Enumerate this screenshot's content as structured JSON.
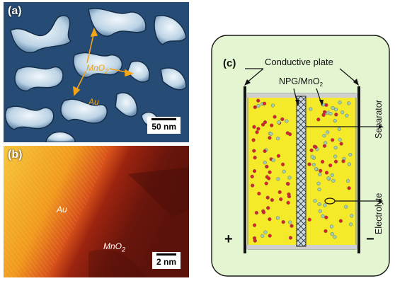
{
  "panel_a": {
    "label": "(a)",
    "mno2_label": "MnO",
    "mno2_sub": "2",
    "au_label": "Au",
    "scale": "50 nm"
  },
  "panel_b": {
    "label": "(b)",
    "au_label": "Au",
    "mno2_label": "MnO",
    "mno2_sub": "2",
    "scale": "2 nm"
  },
  "panel_c": {
    "label": "(c)",
    "conductive_plate": "Conductive plate",
    "npg_label": "NPG/MnO",
    "npg_sub": "2",
    "separator": "Separator",
    "electrolyte": "Electrolyte",
    "plus": "+",
    "minus": "−"
  },
  "colors": {
    "background_panel_c": "#e4f5d2",
    "electrolyte_fill": "#f5ea2a",
    "cation": "#d8232a",
    "anion": "#9fd0b0",
    "sem_blue": "#2c4f76",
    "au_orange": "#f5a21b"
  }
}
